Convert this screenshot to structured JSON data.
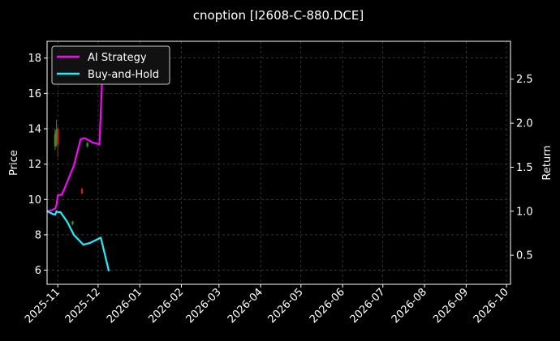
{
  "chart_data": {
    "type": "line",
    "title": "cnoption [I2608-C-880.DCE]",
    "xlabel": "",
    "ylabel_left": "Price",
    "ylabel_right": "Return",
    "x_range": [
      "2025-10-24",
      "2026-10-04"
    ],
    "x_ticks": [
      "2025-11",
      "2025-12",
      "2026-01",
      "2026-02",
      "2026-03",
      "2026-04",
      "2026-05",
      "2026-06",
      "2026-07",
      "2026-08",
      "2026-09",
      "2026-10"
    ],
    "ylim_left": [
      5.2,
      18.95
    ],
    "yticks_left": [
      6,
      8,
      10,
      12,
      14,
      16,
      18
    ],
    "ylim_right": [
      0.17,
      2.93
    ],
    "yticks_right": [
      0.5,
      1.0,
      1.5,
      2.0,
      2.5
    ],
    "grid": true,
    "legend_position": "top-left",
    "colors": {
      "background": "#000000",
      "ai_strategy": "#ff00ff",
      "buy_and_hold": "#22eeff",
      "candle_up": "#1f9e1f",
      "candle_down": "#d42020",
      "grid": "#555555",
      "text": "#ffffff"
    },
    "series": [
      {
        "name": "AI Strategy",
        "axis": "right",
        "points": [
          [
            "2025-10-24",
            1.0
          ],
          [
            "2025-10-27",
            1.01
          ],
          [
            "2025-10-30",
            1.03
          ],
          [
            "2025-10-31",
            1.07
          ],
          [
            "2025-11-01",
            1.18
          ],
          [
            "2025-11-04",
            1.19
          ],
          [
            "2025-11-06",
            1.26
          ],
          [
            "2025-11-13",
            1.52
          ],
          [
            "2025-11-18",
            1.82
          ],
          [
            "2025-11-21",
            1.83
          ],
          [
            "2025-11-27",
            1.78
          ],
          [
            "2025-12-02",
            1.76
          ],
          [
            "2025-12-05",
            2.87
          ]
        ]
      },
      {
        "name": "Buy-and-Hold",
        "axis": "right",
        "points": [
          [
            "2025-10-24",
            1.0
          ],
          [
            "2025-10-28",
            0.97
          ],
          [
            "2025-10-30",
            0.96
          ],
          [
            "2025-10-31",
            1.0
          ],
          [
            "2025-11-01",
            0.99
          ],
          [
            "2025-11-03",
            0.99
          ],
          [
            "2025-11-08",
            0.88
          ],
          [
            "2025-11-13",
            0.73
          ],
          [
            "2025-11-20",
            0.62
          ],
          [
            "2025-11-25",
            0.64
          ],
          [
            "2025-12-03",
            0.7
          ],
          [
            "2025-12-09",
            0.32
          ]
        ]
      }
    ],
    "candles": [
      {
        "date": "2025-10-30",
        "open": 13.0,
        "close": 13.7,
        "low": 12.8,
        "high": 14.0
      },
      {
        "date": "2025-10-31",
        "open": 13.4,
        "close": 13.9,
        "low": 13.0,
        "high": 14.5
      },
      {
        "date": "2025-11-01",
        "open": 14.0,
        "close": 13.1,
        "low": 12.4,
        "high": 14.1
      },
      {
        "date": "2025-11-12",
        "open": 8.6,
        "close": 8.75,
        "low": 8.55,
        "high": 8.8
      },
      {
        "date": "2025-11-19",
        "open": 10.6,
        "close": 10.35,
        "low": 10.3,
        "high": 10.65
      },
      {
        "date": "2025-11-23",
        "open": 13.0,
        "close": 13.2,
        "low": 12.95,
        "high": 13.25
      }
    ]
  }
}
